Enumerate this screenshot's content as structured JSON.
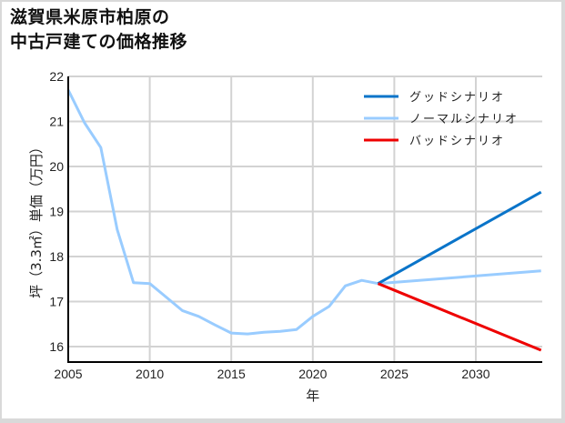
{
  "title_line1": "滋賀県米原市柏原の",
  "title_line2": "中古戸建ての価格推移",
  "colors": {
    "good": "#0a74c9",
    "normal": "#99ccff",
    "bad": "#ee0000",
    "grid": "#d3d3d3",
    "axis": "#000000"
  },
  "chart_data": {
    "type": "line",
    "title": "滋賀県米原市柏原の中古戸建ての価格推移",
    "xlabel": "年",
    "ylabel": "坪（3.3㎡）単価（万円）",
    "xlim": [
      2005,
      2034
    ],
    "ylim": [
      15.65,
      22
    ],
    "xticks": [
      2005,
      2010,
      2015,
      2020,
      2025,
      2030
    ],
    "yticks": [
      16,
      17,
      18,
      19,
      20,
      21,
      22
    ],
    "grid": true,
    "legend_position": "upper right",
    "series": [
      {
        "name": "グッドシナリオ",
        "color": "#0a74c9",
        "x": [
          2024,
          2034
        ],
        "y": [
          17.4,
          19.43
        ]
      },
      {
        "name": "ノーマルシナリオ",
        "color": "#99ccff",
        "x": [
          2005,
          2006,
          2007,
          2008,
          2009,
          2010,
          2011,
          2012,
          2013,
          2014,
          2015,
          2016,
          2017,
          2018,
          2019,
          2020,
          2021,
          2022,
          2023,
          2024,
          2034
        ],
        "y": [
          21.7,
          20.97,
          20.42,
          18.6,
          17.42,
          17.4,
          17.1,
          16.8,
          16.67,
          16.48,
          16.3,
          16.28,
          16.32,
          16.34,
          16.38,
          16.67,
          16.89,
          17.35,
          17.47,
          17.4,
          17.68
        ]
      },
      {
        "name": "バッドシナリオ",
        "color": "#ee0000",
        "x": [
          2024,
          2034
        ],
        "y": [
          17.4,
          15.92
        ]
      }
    ]
  }
}
